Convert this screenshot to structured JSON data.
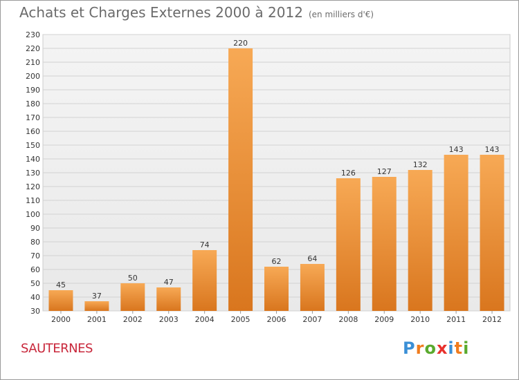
{
  "header": {
    "title": "Achats et Charges Externes 2000 à 2012",
    "subtitle": "(en milliers d'€)"
  },
  "footer": {
    "place": "SAUTERNES",
    "logo_letters": [
      "P",
      "r",
      "o",
      "x",
      "i",
      "t",
      "i"
    ],
    "logo_colors": [
      "#3a8fd6",
      "#f07c1e",
      "#5aaa2e",
      "#e8312d",
      "#3a8fd6",
      "#f07c1e",
      "#5aaa2e"
    ]
  },
  "chart_data": {
    "type": "bar",
    "categories": [
      "2000",
      "2001",
      "2002",
      "2003",
      "2004",
      "2005",
      "2006",
      "2007",
      "2008",
      "2009",
      "2010",
      "2011",
      "2012"
    ],
    "values": [
      45,
      37,
      50,
      47,
      74,
      220,
      62,
      64,
      126,
      127,
      132,
      143,
      143
    ],
    "ylim": [
      30,
      230
    ],
    "yticks": [
      30,
      40,
      50,
      60,
      70,
      80,
      90,
      100,
      110,
      120,
      130,
      140,
      150,
      160,
      170,
      180,
      190,
      200,
      210,
      220,
      230
    ],
    "grid": true,
    "bar_color_top": "#f7a955",
    "bar_color_bottom": "#d9761e"
  }
}
